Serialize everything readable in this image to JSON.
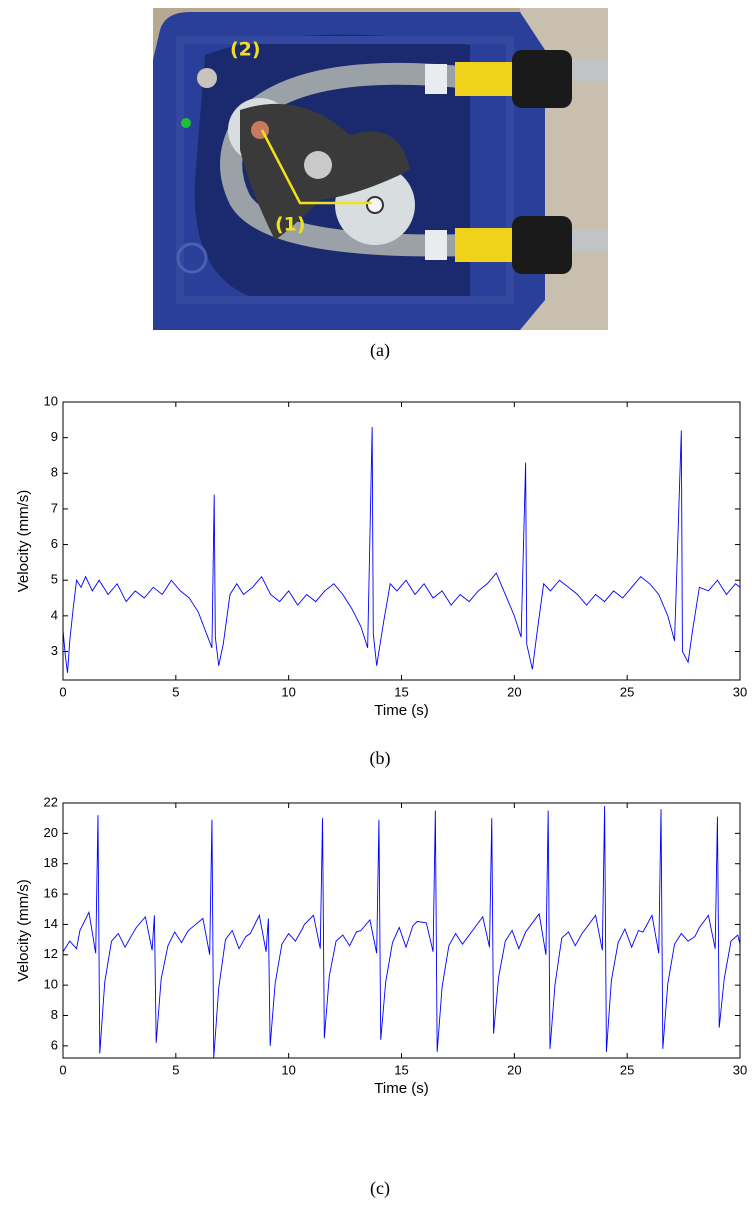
{
  "photo_labels": [
    "(2)",
    "(1)"
  ],
  "captions": [
    "(a)",
    "(b)",
    "(c)"
  ],
  "chart_data": [
    {
      "type": "line",
      "xlabel": "Time (s)",
      "ylabel": "Velocity (mm/s)",
      "color": "#0000ff",
      "xlim": [
        0,
        30
      ],
      "xticks": [
        0,
        5,
        10,
        15,
        20,
        25,
        30
      ],
      "ylim": [
        2.2,
        10
      ],
      "yticks": [
        3,
        4,
        5,
        6,
        7,
        8,
        9,
        10
      ],
      "x": [
        0,
        0.1,
        0.2,
        0.3,
        0.45,
        0.6,
        0.8,
        1,
        1.3,
        1.6,
        2,
        2.4,
        2.8,
        3.2,
        3.6,
        4,
        4.4,
        4.8,
        5.2,
        5.6,
        6,
        6.3,
        6.6,
        6.7,
        6.75,
        6.9,
        7.1,
        7.4,
        7.7,
        8,
        8.4,
        8.8,
        9.2,
        9.6,
        10,
        10.4,
        10.8,
        11.2,
        11.6,
        12,
        12.4,
        12.8,
        13.2,
        13.5,
        13.7,
        13.75,
        13.9,
        14.2,
        14.5,
        14.8,
        15.2,
        15.6,
        16,
        16.4,
        16.8,
        17.2,
        17.6,
        18,
        18.4,
        18.8,
        19.2,
        19.6,
        20,
        20.3,
        20.5,
        20.55,
        20.8,
        21,
        21.3,
        21.6,
        22,
        22.4,
        22.8,
        23.2,
        23.6,
        24,
        24.4,
        24.8,
        25.2,
        25.6,
        26,
        26.4,
        26.8,
        27.1,
        27.4,
        27.45,
        27.7,
        27.9,
        28.2,
        28.6,
        29,
        29.4,
        29.8,
        30
      ],
      "values": [
        3.6,
        2.9,
        2.4,
        3.3,
        4.2,
        5.0,
        4.8,
        5.1,
        4.7,
        5.0,
        4.6,
        4.9,
        4.4,
        4.7,
        4.5,
        4.8,
        4.6,
        5.0,
        4.7,
        4.5,
        4.1,
        3.6,
        3.1,
        7.4,
        3.4,
        2.6,
        3.2,
        4.6,
        4.9,
        4.6,
        4.8,
        5.1,
        4.6,
        4.4,
        4.7,
        4.3,
        4.6,
        4.4,
        4.7,
        4.9,
        4.6,
        4.2,
        3.7,
        3.1,
        9.3,
        3.5,
        2.6,
        3.8,
        4.9,
        4.7,
        5.0,
        4.6,
        4.9,
        4.5,
        4.7,
        4.3,
        4.6,
        4.4,
        4.7,
        4.9,
        5.2,
        4.6,
        4.0,
        3.4,
        8.3,
        3.2,
        2.5,
        3.5,
        4.9,
        4.7,
        5.0,
        4.8,
        4.6,
        4.3,
        4.6,
        4.4,
        4.7,
        4.5,
        4.8,
        5.1,
        4.9,
        4.6,
        4.0,
        3.3,
        9.2,
        3.0,
        2.7,
        3.6,
        4.8,
        4.7,
        5.0,
        4.6,
        4.9,
        4.8
      ]
    },
    {
      "type": "line",
      "xlabel": "Time (s)",
      "ylabel": "Velocity (mm/s)",
      "color": "#0000ff",
      "xlim": [
        0,
        30
      ],
      "xticks": [
        0,
        5,
        10,
        15,
        20,
        25,
        30
      ],
      "ylim": [
        5.2,
        22
      ],
      "yticks": [
        6,
        8,
        10,
        12,
        14,
        16,
        18,
        20,
        22
      ],
      "x": [
        0,
        0.3,
        0.6,
        0.75,
        1.15,
        1.45,
        1.55,
        1.63,
        1.85,
        2.15,
        2.45,
        2.75,
        3.05,
        3.25,
        3.65,
        3.95,
        4.05,
        4.13,
        4.35,
        4.65,
        4.95,
        5.25,
        5.55,
        5.8,
        6.2,
        6.5,
        6.6,
        6.68,
        6.9,
        7.2,
        7.5,
        7.8,
        8.1,
        8.3,
        8.7,
        9.0,
        9.1,
        9.18,
        9.4,
        9.7,
        10.0,
        10.3,
        10.6,
        10.7,
        11.1,
        11.4,
        11.5,
        11.58,
        11.8,
        12.1,
        12.4,
        12.7,
        13.0,
        13.2,
        13.6,
        13.9,
        14.0,
        14.08,
        14.3,
        14.6,
        14.9,
        15.2,
        15.5,
        15.7,
        16.1,
        16.4,
        16.5,
        16.58,
        16.8,
        17.1,
        17.4,
        17.7,
        18.0,
        18.2,
        18.6,
        18.9,
        19.0,
        19.08,
        19.3,
        19.6,
        19.9,
        20.2,
        20.5,
        20.7,
        21.1,
        21.4,
        21.5,
        21.58,
        21.8,
        22.1,
        22.4,
        22.7,
        23.0,
        23.2,
        23.6,
        23.9,
        24.0,
        24.08,
        24.3,
        24.6,
        24.9,
        25.2,
        25.5,
        25.7,
        26.1,
        26.4,
        26.5,
        26.58,
        26.8,
        27.1,
        27.4,
        27.7,
        28.0,
        28.2,
        28.6,
        28.9,
        29.0,
        29.08,
        29.3,
        29.6,
        29.9,
        30
      ],
      "values": [
        12.2,
        12.9,
        12.4,
        13.6,
        14.8,
        12.1,
        21.2,
        5.5,
        10.2,
        12.9,
        13.4,
        12.5,
        13.3,
        13.8,
        14.5,
        12.3,
        14.6,
        6.2,
        10.4,
        12.6,
        13.5,
        12.8,
        13.6,
        13.9,
        14.4,
        12.0,
        20.9,
        5.2,
        9.8,
        13.0,
        13.6,
        12.4,
        13.2,
        13.4,
        14.6,
        12.2,
        14.4,
        6.0,
        10.1,
        12.7,
        13.4,
        12.9,
        13.7,
        14.0,
        14.6,
        12.4,
        21.0,
        6.5,
        10.6,
        12.9,
        13.3,
        12.6,
        13.5,
        13.6,
        14.3,
        12.1,
        20.9,
        6.4,
        10.2,
        12.8,
        13.8,
        12.5,
        13.9,
        14.2,
        14.1,
        12.2,
        21.5,
        5.6,
        9.9,
        12.6,
        13.4,
        12.7,
        13.3,
        13.7,
        14.5,
        12.5,
        21.0,
        6.8,
        10.5,
        12.9,
        13.6,
        12.4,
        13.5,
        13.9,
        14.7,
        12.0,
        21.5,
        5.8,
        10.0,
        13.1,
        13.5,
        12.6,
        13.4,
        13.8,
        14.6,
        12.3,
        21.8,
        5.6,
        10.3,
        12.8,
        13.7,
        12.5,
        13.6,
        13.5,
        14.6,
        12.1,
        21.6,
        5.8,
        10.1,
        12.7,
        13.4,
        12.9,
        13.2,
        13.8,
        14.6,
        12.4,
        21.1,
        7.2,
        10.4,
        12.9,
        13.3,
        12.7
      ]
    }
  ]
}
